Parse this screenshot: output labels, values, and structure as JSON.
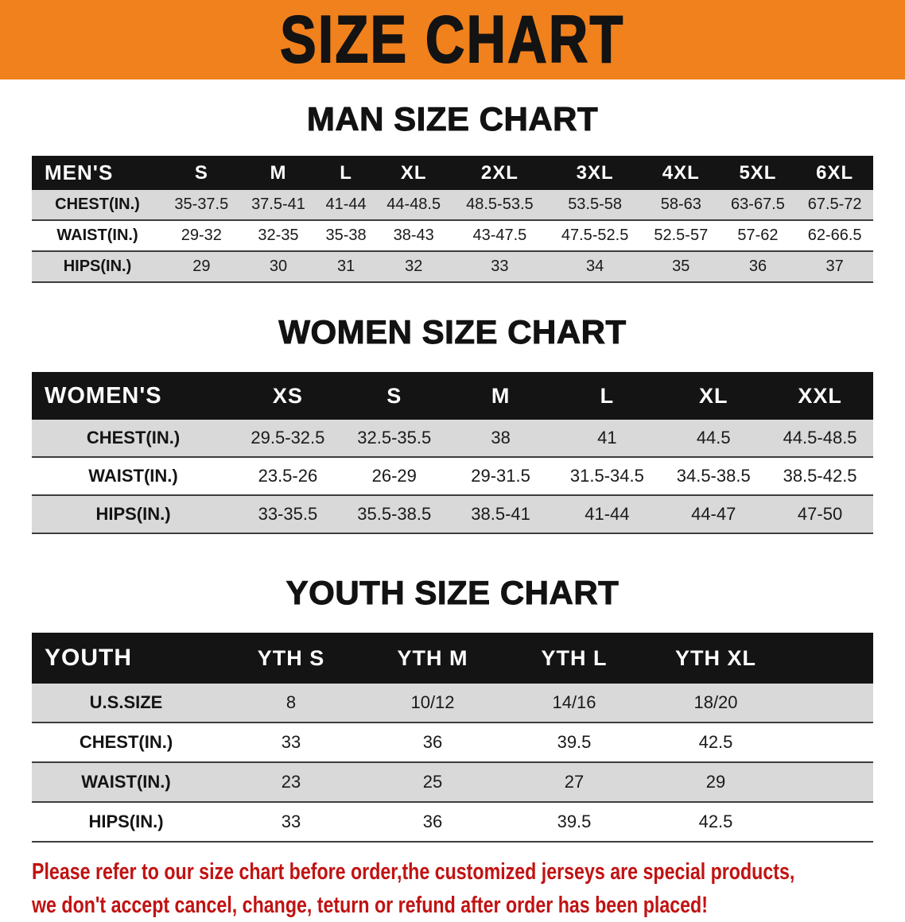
{
  "banner": {
    "title": "SIZE CHART"
  },
  "colors": {
    "banner_bg": "#F1811C",
    "table_header_bg": "#141414",
    "row_alt_bg": "#D9D9D9",
    "disclaimer_color": "#C11212"
  },
  "men": {
    "heading": "MAN SIZE CHART",
    "table": {
      "header": [
        "MEN'S",
        "S",
        "M",
        "L",
        "XL",
        "2XL",
        "3XL",
        "4XL",
        "5XL",
        "6XL"
      ],
      "rows": [
        [
          "CHEST(IN.)",
          "35-37.5",
          "37.5-41",
          "41-44",
          "44-48.5",
          "48.5-53.5",
          "53.5-58",
          "58-63",
          "63-67.5",
          "67.5-72"
        ],
        [
          "WAIST(IN.)",
          "29-32",
          "32-35",
          "35-38",
          "38-43",
          "43-47.5",
          "47.5-52.5",
          "52.5-57",
          "57-62",
          "62-66.5"
        ],
        [
          "HIPS(IN.)",
          "29",
          "30",
          "31",
          "32",
          "33",
          "34",
          "35",
          "36",
          "37"
        ]
      ]
    }
  },
  "women": {
    "heading": "WOMEN SIZE CHART",
    "table": {
      "header": [
        "WOMEN'S",
        "XS",
        "S",
        "M",
        "L",
        "XL",
        "XXL"
      ],
      "rows": [
        [
          "CHEST(IN.)",
          "29.5-32.5",
          "32.5-35.5",
          "38",
          "41",
          "44.5",
          "44.5-48.5"
        ],
        [
          "WAIST(IN.)",
          "23.5-26",
          "26-29",
          "29-31.5",
          "31.5-34.5",
          "34.5-38.5",
          "38.5-42.5"
        ],
        [
          "HIPS(IN.)",
          "33-35.5",
          "35.5-38.5",
          "38.5-41",
          "41-44",
          "44-47",
          "47-50"
        ]
      ]
    }
  },
  "youth": {
    "heading": "YOUTH SIZE CHART",
    "table": {
      "header": [
        "YOUTH",
        "YTH S",
        "YTH M",
        "YTH L",
        "YTH XL"
      ],
      "rows": [
        [
          "U.S.SIZE",
          "8",
          "10/12",
          "14/16",
          "18/20"
        ],
        [
          "CHEST(IN.)",
          "33",
          "36",
          "39.5",
          "42.5"
        ],
        [
          "WAIST(IN.)",
          "23",
          "25",
          "27",
          "29"
        ],
        [
          "HIPS(IN.)",
          "33",
          "36",
          "39.5",
          "42.5"
        ]
      ]
    }
  },
  "disclaimer": {
    "lines": [
      "Please refer to our size chart before order,the customized jerseys are special products,",
      "we don't accept cancel, change, teturn or refund after order has been placed!"
    ]
  }
}
